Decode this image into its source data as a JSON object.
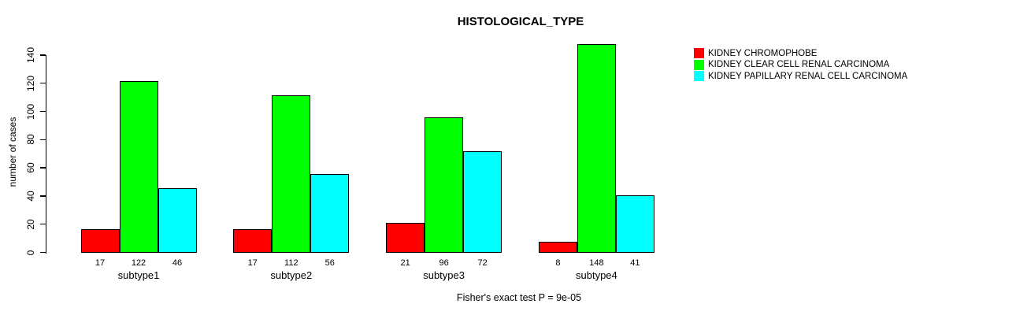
{
  "chart_data": {
    "type": "bar",
    "title": "HISTOLOGICAL_TYPE",
    "categories": [
      "subtype1",
      "subtype2",
      "subtype3",
      "subtype4"
    ],
    "series": [
      {
        "name": "KIDNEY CHROMOPHOBE",
        "color": "#FF0000",
        "values": [
          17,
          17,
          21,
          8
        ]
      },
      {
        "name": "KIDNEY CLEAR CELL RENAL CARCINOMA",
        "color": "#00FF00",
        "values": [
          122,
          112,
          96,
          148
        ]
      },
      {
        "name": "KIDNEY PAPILLARY RENAL CELL CARCINOMA",
        "color": "#00FFFF",
        "values": [
          46,
          56,
          72,
          41
        ]
      }
    ],
    "xlabel": "",
    "ylabel": "number of cases",
    "ylim": [
      0,
      140
    ],
    "yticks": [
      0,
      20,
      40,
      60,
      80,
      100,
      120,
      140
    ],
    "grid": false,
    "legend_position": "right",
    "bar_value_labels": true,
    "annotation": "Fisher's exact test P = 9e-05",
    "axis_color": "#000000",
    "background": "#FFFFFF"
  }
}
